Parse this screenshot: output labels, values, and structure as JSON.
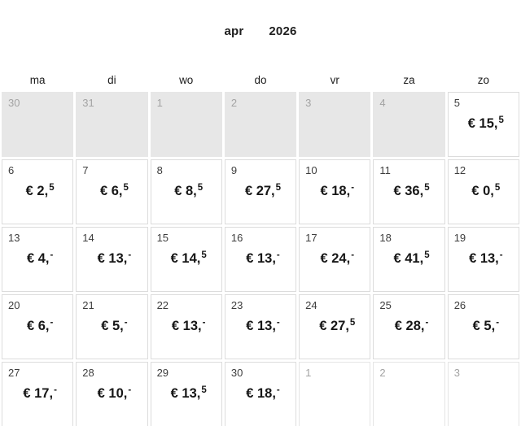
{
  "title": {
    "month": "apr",
    "year": "2026"
  },
  "weekdays": [
    "ma",
    "di",
    "wo",
    "do",
    "vr",
    "za",
    "zo"
  ],
  "colors": {
    "price_text": "#171717",
    "day_number": "#3d3d3d",
    "muted_number": "#a3a3a3",
    "prev_month_cell_bg": "#e7e7e7",
    "cell_border": "#dcdcdc",
    "page_bg": "#ffffff"
  },
  "weeks": [
    [
      {
        "day": "30",
        "type": "prev"
      },
      {
        "day": "31",
        "type": "prev"
      },
      {
        "day": "1",
        "type": "prev"
      },
      {
        "day": "2",
        "type": "prev"
      },
      {
        "day": "3",
        "type": "prev"
      },
      {
        "day": "4",
        "type": "prev"
      },
      {
        "day": "5",
        "type": "day",
        "price_main": "€ 15,",
        "price_sup": "5"
      }
    ],
    [
      {
        "day": "6",
        "type": "day",
        "price_main": "€ 2,",
        "price_sup": "5"
      },
      {
        "day": "7",
        "type": "day",
        "price_main": "€ 6,",
        "price_sup": "5"
      },
      {
        "day": "8",
        "type": "day",
        "price_main": "€ 8,",
        "price_sup": "5"
      },
      {
        "day": "9",
        "type": "day",
        "price_main": "€ 27,",
        "price_sup": "5"
      },
      {
        "day": "10",
        "type": "day",
        "price_main": "€ 18,",
        "price_sup": "-"
      },
      {
        "day": "11",
        "type": "day",
        "price_main": "€ 36,",
        "price_sup": "5"
      },
      {
        "day": "12",
        "type": "day",
        "price_main": "€ 0,",
        "price_sup": "5"
      }
    ],
    [
      {
        "day": "13",
        "type": "day",
        "price_main": "€ 4,",
        "price_sup": "-"
      },
      {
        "day": "14",
        "type": "day",
        "price_main": "€ 13,",
        "price_sup": "-"
      },
      {
        "day": "15",
        "type": "day",
        "price_main": "€ 14,",
        "price_sup": "5"
      },
      {
        "day": "16",
        "type": "day",
        "price_main": "€ 13,",
        "price_sup": "-"
      },
      {
        "day": "17",
        "type": "day",
        "price_main": "€ 24,",
        "price_sup": "-"
      },
      {
        "day": "18",
        "type": "day",
        "price_main": "€ 41,",
        "price_sup": "5"
      },
      {
        "day": "19",
        "type": "day",
        "price_main": "€ 13,",
        "price_sup": "-"
      }
    ],
    [
      {
        "day": "20",
        "type": "day",
        "price_main": "€ 6,",
        "price_sup": "-"
      },
      {
        "day": "21",
        "type": "day",
        "price_main": "€ 5,",
        "price_sup": "-"
      },
      {
        "day": "22",
        "type": "day",
        "price_main": "€ 13,",
        "price_sup": "-"
      },
      {
        "day": "23",
        "type": "day",
        "price_main": "€ 13,",
        "price_sup": "-"
      },
      {
        "day": "24",
        "type": "day",
        "price_main": "€ 27,",
        "price_sup": "5"
      },
      {
        "day": "25",
        "type": "day",
        "price_main": "€ 28,",
        "price_sup": "-"
      },
      {
        "day": "26",
        "type": "day",
        "price_main": "€ 5,",
        "price_sup": "-"
      }
    ],
    [
      {
        "day": "27",
        "type": "day",
        "price_main": "€ 17,",
        "price_sup": "-"
      },
      {
        "day": "28",
        "type": "day",
        "price_main": "€ 10,",
        "price_sup": "-"
      },
      {
        "day": "29",
        "type": "day",
        "price_main": "€ 13,",
        "price_sup": "5"
      },
      {
        "day": "30",
        "type": "day",
        "price_main": "€ 18,",
        "price_sup": "-"
      },
      {
        "day": "1",
        "type": "next"
      },
      {
        "day": "2",
        "type": "next"
      },
      {
        "day": "3",
        "type": "next"
      }
    ]
  ]
}
